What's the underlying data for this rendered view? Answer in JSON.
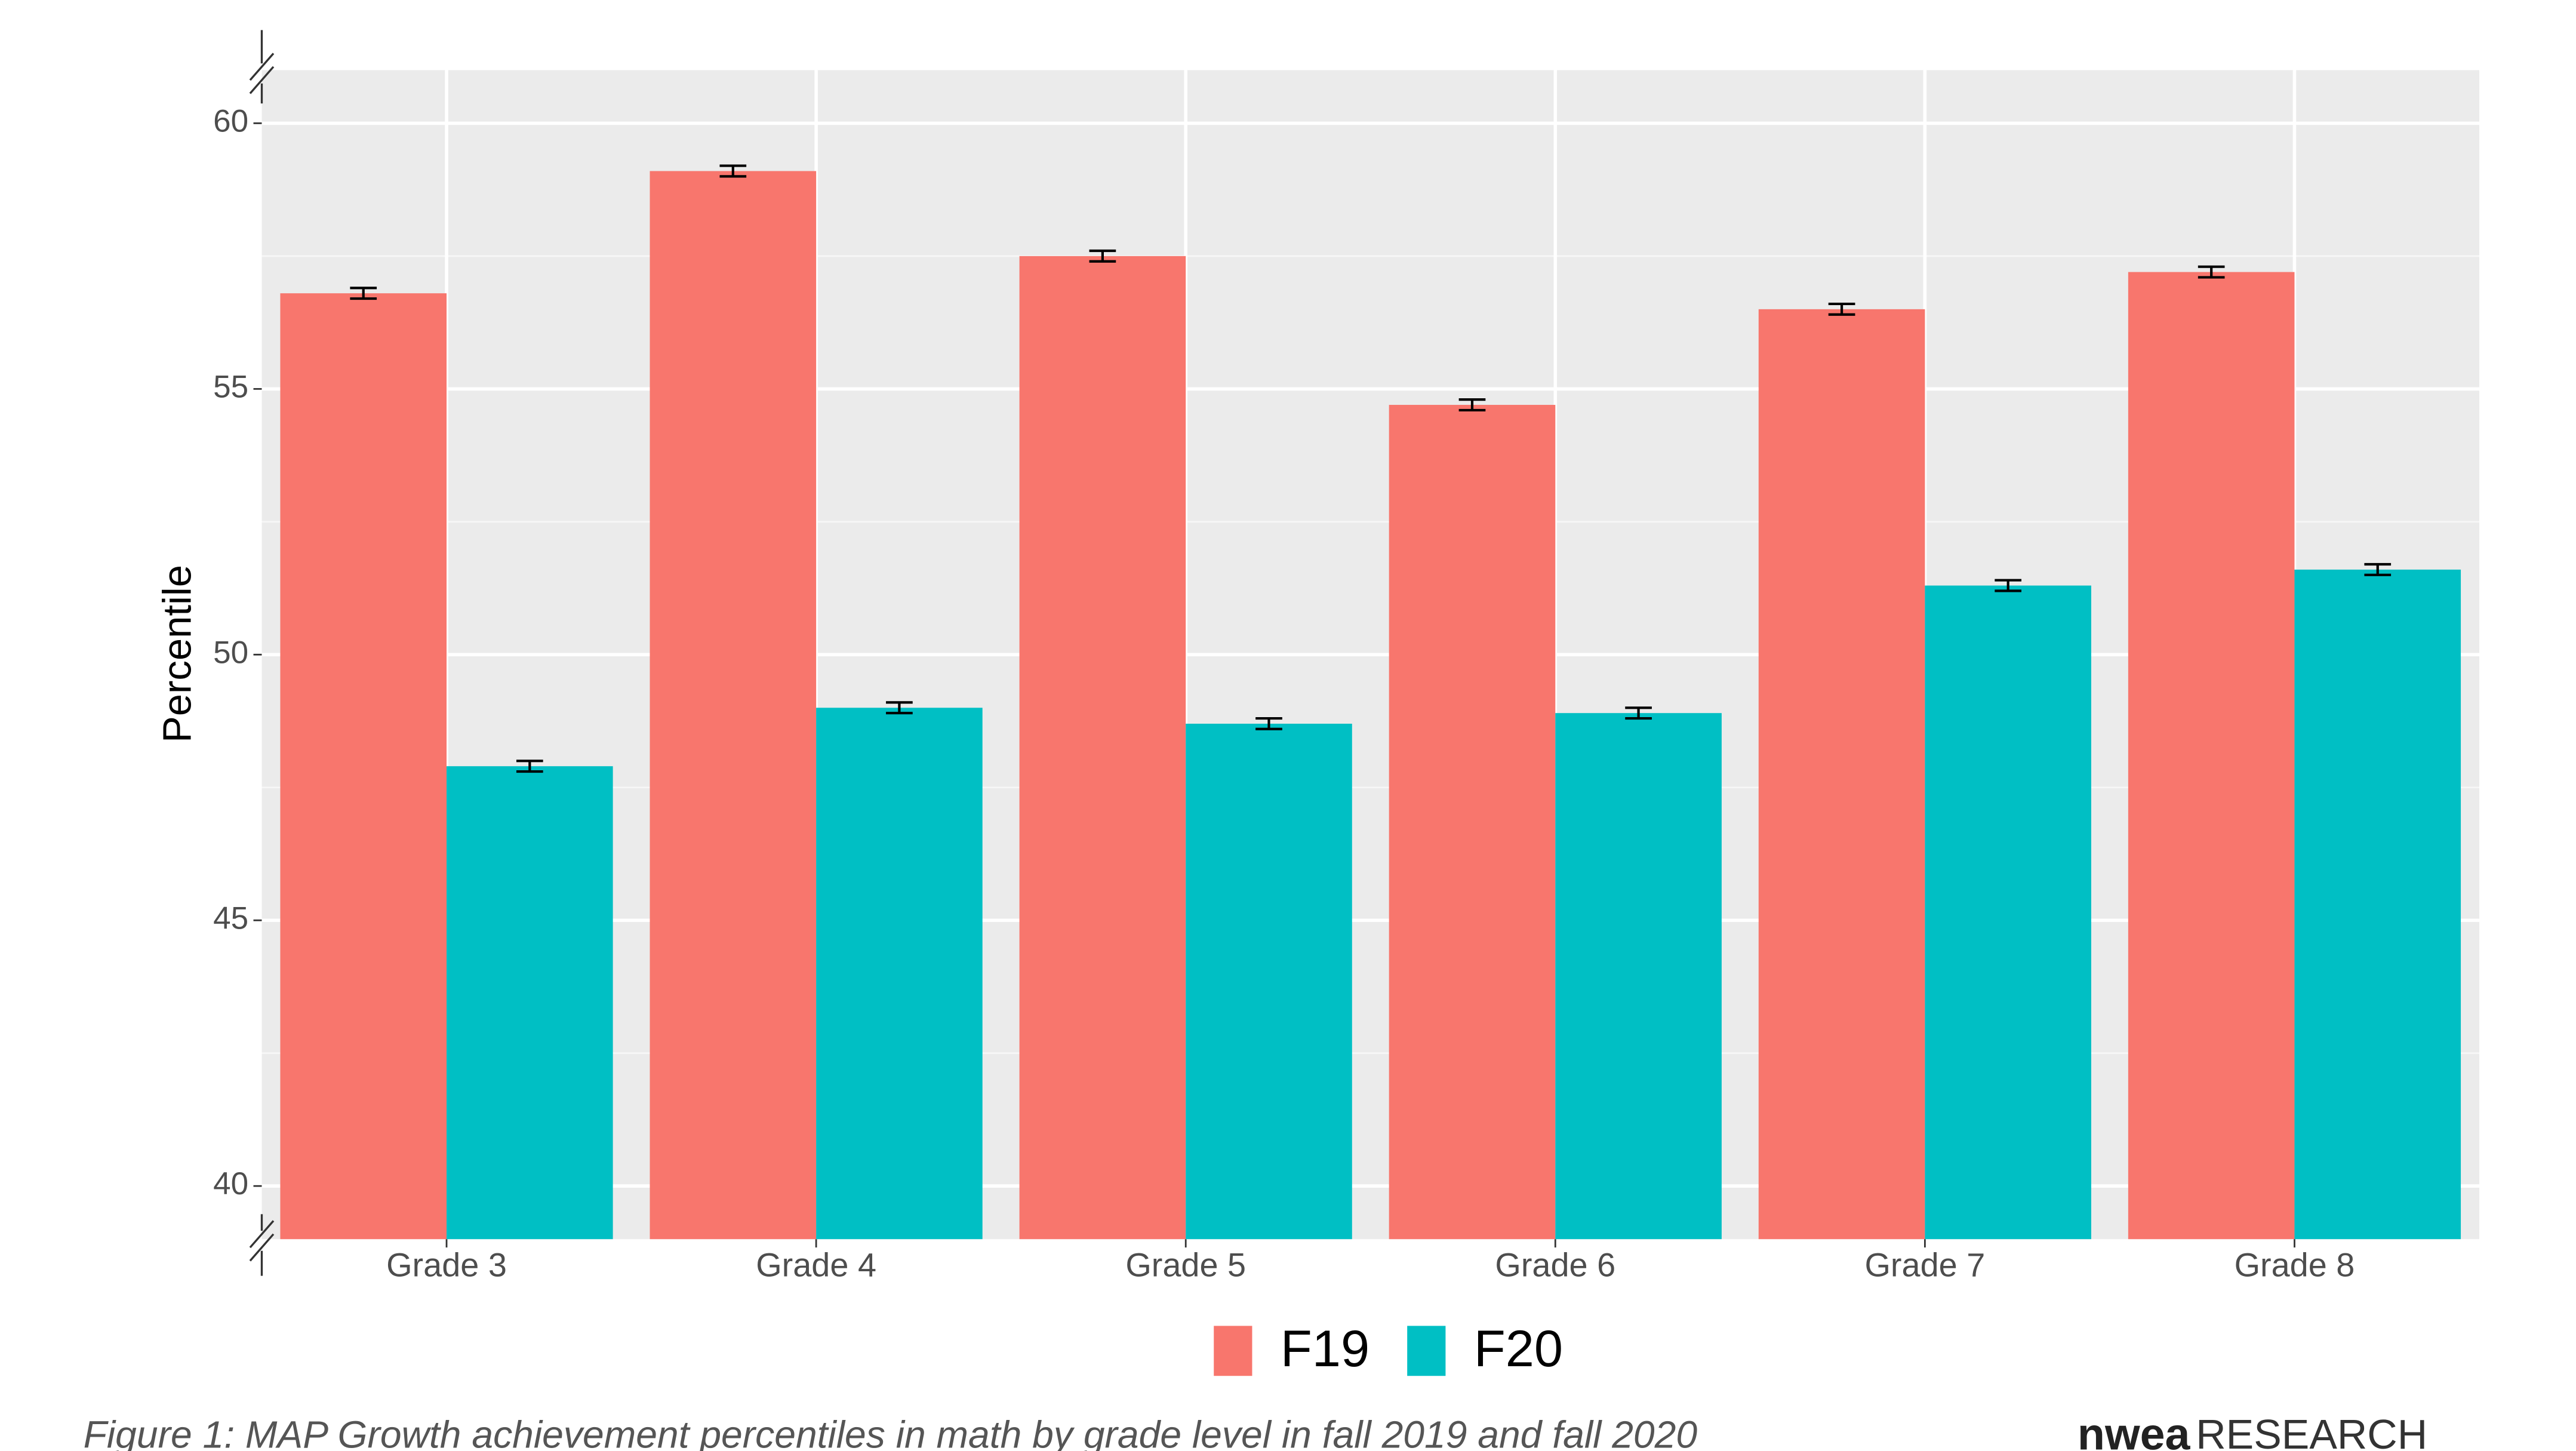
{
  "chart_data": {
    "type": "bar",
    "y_label": "Percentile",
    "caption": "Figure 1: MAP Growth achievement percentiles in math by grade level in fall 2019 and fall 2020",
    "logo": {
      "brand": "nwea",
      "text": "RESEARCH"
    },
    "categories": [
      "Grade 3",
      "Grade 4",
      "Grade 5",
      "Grade 6",
      "Grade 7",
      "Grade 8"
    ],
    "series": [
      {
        "name": "F19",
        "color": "#f8766d",
        "values": [
          56.8,
          59.1,
          57.5,
          54.7,
          56.5,
          57.2
        ],
        "errors": [
          0.1,
          0.1,
          0.1,
          0.1,
          0.1,
          0.1
        ]
      },
      {
        "name": "F20",
        "color": "#00bfc4",
        "values": [
          47.9,
          49.0,
          48.7,
          48.9,
          51.3,
          51.6
        ],
        "errors": [
          0.1,
          0.1,
          0.1,
          0.1,
          0.1,
          0.1
        ]
      }
    ],
    "ylim": [
      39,
      61
    ],
    "yticks": [
      40,
      45,
      50,
      55,
      60
    ],
    "grid": true,
    "legend": "bottom"
  }
}
